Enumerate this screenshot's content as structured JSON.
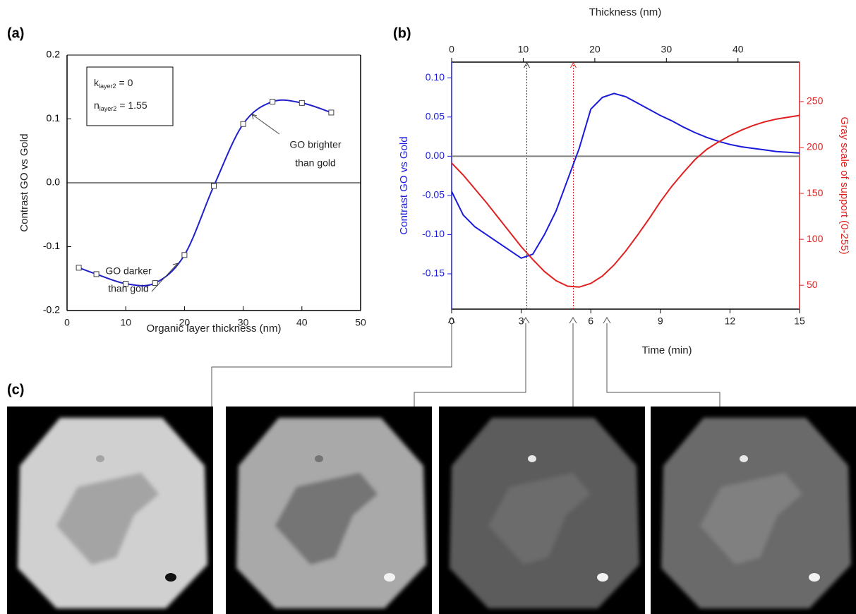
{
  "chart_data": [
    {
      "type": "line",
      "panel_label": "(a)",
      "smooth": true,
      "marker": "square",
      "x_label": "Organic layer thickness (nm)",
      "y_label": "Contrast GO vs Gold",
      "x": [
        2,
        5,
        10,
        15,
        20,
        25,
        30,
        35,
        40,
        45
      ],
      "series": [
        {
          "color": "#1f1fcc",
          "values": [
            -0.133,
            -0.143,
            -0.158,
            -0.157,
            -0.113,
            -0.005,
            0.092,
            0.127,
            0.125,
            0.11
          ]
        }
      ],
      "xlim": [
        0,
        50
      ],
      "xticks": [
        0,
        10,
        20,
        30,
        40,
        50
      ],
      "ylim": [
        -0.2,
        0.2
      ],
      "yticks": [
        -0.2,
        -0.1,
        {
          "value": 0,
          "label": "0.0"
        },
        0.1,
        0.2
      ],
      "zero_line": "#000000",
      "inset": [
        {
          "symbol": "k",
          "subscript": "layer2",
          "text": "= 0"
        },
        {
          "symbol": "n",
          "subscript": "layer2",
          "text": "= 1.55"
        }
      ],
      "annotations": [
        {
          "lines": [
            "GO darker",
            "than gold"
          ]
        },
        {
          "lines": [
            "GO brighter",
            "than gold"
          ]
        }
      ]
    },
    {
      "type": "line",
      "panel_label": "(b)",
      "x_label": "Time (min)",
      "x2_label": "Thickness (nm)",
      "y_label": "Contrast GO vs Gold",
      "y2_label": "Gray scale of support (0-255)",
      "x": [
        0,
        0.5,
        1,
        1.5,
        2,
        2.5,
        3,
        3.5,
        4,
        4.5,
        5,
        5.5,
        6,
        6.5,
        7,
        7.5,
        8,
        8.5,
        9,
        9.5,
        10,
        10.5,
        11,
        11.5,
        12,
        12.5,
        13,
        13.5,
        14,
        14.5,
        15
      ],
      "series": [
        {
          "color": "#1a1adb",
          "values": [
            -0.045,
            -0.075,
            -0.09,
            -0.1,
            -0.11,
            -0.12,
            -0.13,
            -0.125,
            -0.1,
            -0.07,
            -0.03,
            0.01,
            0.06,
            0.075,
            0.08,
            0.076,
            0.068,
            0.06,
            0.052,
            0.045,
            0.037,
            0.03,
            0.024,
            0.019,
            0.015,
            0.012,
            0.01,
            0.008,
            0.006,
            0.005,
            0.004
          ]
        },
        {
          "color": "#e02020",
          "axis": "y2",
          "values": [
            183,
            170,
            155,
            140,
            124,
            108,
            92,
            78,
            65,
            55,
            49,
            48,
            52,
            60,
            72,
            87,
            104,
            122,
            141,
            158,
            173,
            187,
            198,
            206,
            213,
            219,
            224,
            228,
            231,
            233,
            235
          ]
        }
      ],
      "xlim": [
        0,
        15
      ],
      "xticks": [
        0,
        3,
        6,
        9,
        12,
        15
      ],
      "x2lim": [
        0,
        48.6
      ],
      "x2ticks": [
        0,
        10,
        20,
        30,
        40
      ],
      "ylim": [
        -0.195,
        0.12
      ],
      "yticks": [
        -0.15,
        {
          "value": -0.1,
          "label": "-0.10"
        },
        -0.05,
        {
          "value": 0,
          "label": "0.00"
        },
        0.05,
        {
          "value": 0.1,
          "label": "0.10"
        }
      ],
      "y2lim": [
        24,
        293
      ],
      "y2ticks": [
        50,
        100,
        150,
        200,
        250
      ],
      "zero_line": "#808080",
      "markers": [
        {
          "x2": 10.5,
          "color": "#333333"
        },
        {
          "x2": 17,
          "color": "#e02020"
        }
      ]
    }
  ],
  "images_panel": {
    "label": "(c)"
  }
}
